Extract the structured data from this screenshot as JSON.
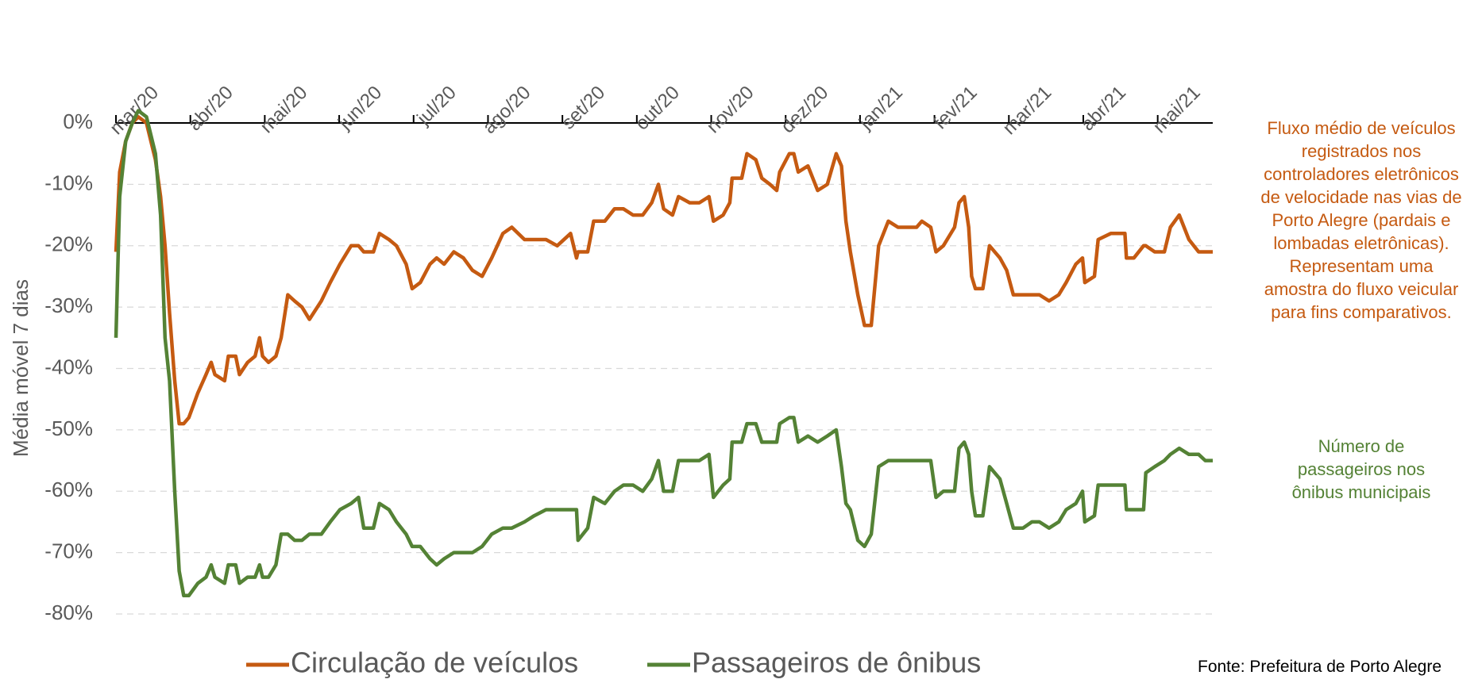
{
  "chart_data": {
    "type": "line",
    "ylabel": "Média móvel 7 dias",
    "x": [
      0,
      0.05,
      0.13,
      0.22,
      0.3,
      0.41,
      0.53,
      0.6,
      0.66,
      0.72,
      0.79,
      0.85,
      0.91,
      0.98,
      1.1,
      1.21,
      1.28,
      1.33,
      1.46,
      1.51,
      1.61,
      1.66,
      1.77,
      1.87,
      1.93,
      1.97,
      2.05,
      2.15,
      2.22,
      2.31,
      2.4,
      2.5,
      2.6,
      2.76,
      2.88,
      3.01,
      3.16,
      3.26,
      3.33,
      3.46,
      3.54,
      3.67,
      3.77,
      3.9,
      3.98,
      4.09,
      4.22,
      4.31,
      4.41,
      4.54,
      4.67,
      4.79,
      4.92,
      5.05,
      5.2,
      5.32,
      5.49,
      5.62,
      5.78,
      5.93,
      6.11,
      6.19,
      6.21,
      6.34,
      6.42,
      6.57,
      6.7,
      6.82,
      6.95,
      7.08,
      7.2,
      7.29,
      7.36,
      7.48,
      7.56,
      7.71,
      7.84,
      7.97,
      8.03,
      8.16,
      8.25,
      8.28,
      8.41,
      8.48,
      8.6,
      8.68,
      8.79,
      8.88,
      8.92,
      9.05,
      9.11,
      9.17,
      9.3,
      9.43,
      9.56,
      9.68,
      9.75,
      9.81,
      9.87,
      9.97,
      10.06,
      10.15,
      10.25,
      10.38,
      10.51,
      10.64,
      10.76,
      10.83,
      10.95,
      11.02,
      11.12,
      11.27,
      11.33,
      11.4,
      11.46,
      11.5,
      11.55,
      11.65,
      11.74,
      11.88,
      11.97,
      12.06,
      12.19,
      12.31,
      12.41,
      12.54,
      12.67,
      12.77,
      12.9,
      12.99,
      13.02,
      13.15,
      13.2,
      13.37,
      13.49,
      13.56,
      13.58,
      13.68,
      13.81,
      13.84,
      13.96,
      14.09,
      14.17,
      14.29,
      14.42,
      14.55,
      14.64,
      14.74
    ],
    "series": [
      {
        "name": "Circulação de veículos",
        "color": "#c55a11",
        "values": [
          -21,
          -8,
          -3,
          0,
          1,
          0,
          -6,
          -12,
          -20,
          -31,
          -42,
          -49,
          -49,
          -48,
          -44,
          -41,
          -39,
          -41,
          -42,
          -38,
          -38,
          -41,
          -39,
          -38,
          -35,
          -38,
          -39,
          -38,
          -35,
          -28,
          -29,
          -30,
          -32,
          -29,
          -26,
          -23,
          -20,
          -20,
          -21,
          -21,
          -18,
          -19,
          -20,
          -23,
          -27,
          -26,
          -23,
          -22,
          -23,
          -21,
          -22,
          -24,
          -25,
          -22,
          -18,
          -17,
          -19,
          -19,
          -19,
          -20,
          -18,
          -22,
          -21,
          -21,
          -16,
          -16,
          -14,
          -14,
          -15,
          -15,
          -13,
          -10,
          -14,
          -15,
          -12,
          -13,
          -13,
          -12,
          -16,
          -15,
          -13,
          -9,
          -9,
          -5,
          -6,
          -9,
          -10,
          -11,
          -8,
          -5,
          -5,
          -8,
          -7,
          -11,
          -10,
          -5,
          -7,
          -16,
          -21,
          -28,
          -33,
          -33,
          -20,
          -16,
          -17,
          -17,
          -17,
          -16,
          -17,
          -21,
          -20,
          -17,
          -13,
          -12,
          -17,
          -25,
          -27,
          -27,
          -20,
          -22,
          -24,
          -28,
          -28,
          -28,
          -28,
          -29,
          -28,
          -26,
          -23,
          -22,
          -26,
          -25,
          -19,
          -18,
          -18,
          -18,
          -22,
          -22,
          -20,
          -20,
          -21,
          -21,
          -17,
          -15,
          -19,
          -21,
          -21,
          -21
        ]
      },
      {
        "name": "Passageiros de ônibus",
        "color": "#548235",
        "values": [
          -35,
          -12,
          -3,
          0,
          2,
          1,
          -5,
          -15,
          -35,
          -42,
          -60,
          -73,
          -77,
          -77,
          -75,
          -74,
          -72,
          -74,
          -75,
          -72,
          -72,
          -75,
          -74,
          -74,
          -72,
          -74,
          -74,
          -72,
          -67,
          -67,
          -68,
          -68,
          -67,
          -67,
          -65,
          -63,
          -62,
          -61,
          -66,
          -66,
          -62,
          -63,
          -65,
          -67,
          -69,
          -69,
          -71,
          -72,
          -71,
          -70,
          -70,
          -70,
          -69,
          -67,
          -66,
          -66,
          -65,
          -64,
          -63,
          -63,
          -63,
          -63,
          -68,
          -66,
          -61,
          -62,
          -60,
          -59,
          -59,
          -60,
          -58,
          -55,
          -60,
          -60,
          -55,
          -55,
          -55,
          -54,
          -61,
          -59,
          -58,
          -52,
          -52,
          -49,
          -49,
          -52,
          -52,
          -52,
          -49,
          -48,
          -48,
          -52,
          -51,
          -52,
          -51,
          -50,
          -56,
          -62,
          -63,
          -68,
          -69,
          -67,
          -56,
          -55,
          -55,
          -55,
          -55,
          -55,
          -55,
          -61,
          -60,
          -60,
          -53,
          -52,
          -54,
          -60,
          -64,
          -64,
          -56,
          -58,
          -62,
          -66,
          -66,
          -65,
          -65,
          -66,
          -65,
          -63,
          -62,
          -60,
          -65,
          -64,
          -59,
          -59,
          -59,
          -59,
          -63,
          -63,
          -63,
          -57,
          -56,
          -55,
          -54,
          -53,
          -54,
          -54,
          -55,
          -55
        ]
      }
    ],
    "xlim": [
      0,
      14.74
    ],
    "xticks": [
      {
        "value": 0,
        "label": "mar/20"
      },
      {
        "value": 1,
        "label": "abr/20"
      },
      {
        "value": 2,
        "label": "mai/20"
      },
      {
        "value": 3,
        "label": "jun/20"
      },
      {
        "value": 4,
        "label": "jul/20"
      },
      {
        "value": 5,
        "label": "ago/20"
      },
      {
        "value": 6,
        "label": "set/20"
      },
      {
        "value": 7,
        "label": "out/20"
      },
      {
        "value": 8,
        "label": "nov/20"
      },
      {
        "value": 9,
        "label": "dez/20"
      },
      {
        "value": 10,
        "label": "jan/21"
      },
      {
        "value": 11,
        "label": "fev/21"
      },
      {
        "value": 12,
        "label": "mar/21"
      },
      {
        "value": 13,
        "label": "abr/21"
      },
      {
        "value": 14,
        "label": "mai/21"
      }
    ],
    "ylim": [
      -80,
      0
    ],
    "yticks": [
      {
        "value": 0,
        "label": "0%"
      },
      {
        "value": -10,
        "label": "-10%"
      },
      {
        "value": -20,
        "label": "-20%"
      },
      {
        "value": -30,
        "label": "-30%"
      },
      {
        "value": -40,
        "label": "-40%"
      },
      {
        "value": -50,
        "label": "-50%"
      },
      {
        "value": -60,
        "label": "-60%"
      },
      {
        "value": -70,
        "label": "-70%"
      },
      {
        "value": -80,
        "label": "-80%"
      }
    ],
    "grid": true,
    "legend": "bottom",
    "annotations": [
      {
        "color": "#c55a11",
        "lines": [
          "Fluxo médio de veículos",
          "registrados nos",
          "controladores eletrônicos",
          "de velocidade nas vias de",
          "Porto Alegre (pardais e",
          "lombadas eletrônicas).",
          "Representam uma",
          "amostra do fluxo veicular",
          "para fins comparativos."
        ]
      },
      {
        "color": "#548235",
        "lines": [
          "Número de",
          "passageiros nos",
          "ônibus municipais"
        ]
      }
    ],
    "source": "Fonte: Prefeitura de Porto Alegre"
  }
}
